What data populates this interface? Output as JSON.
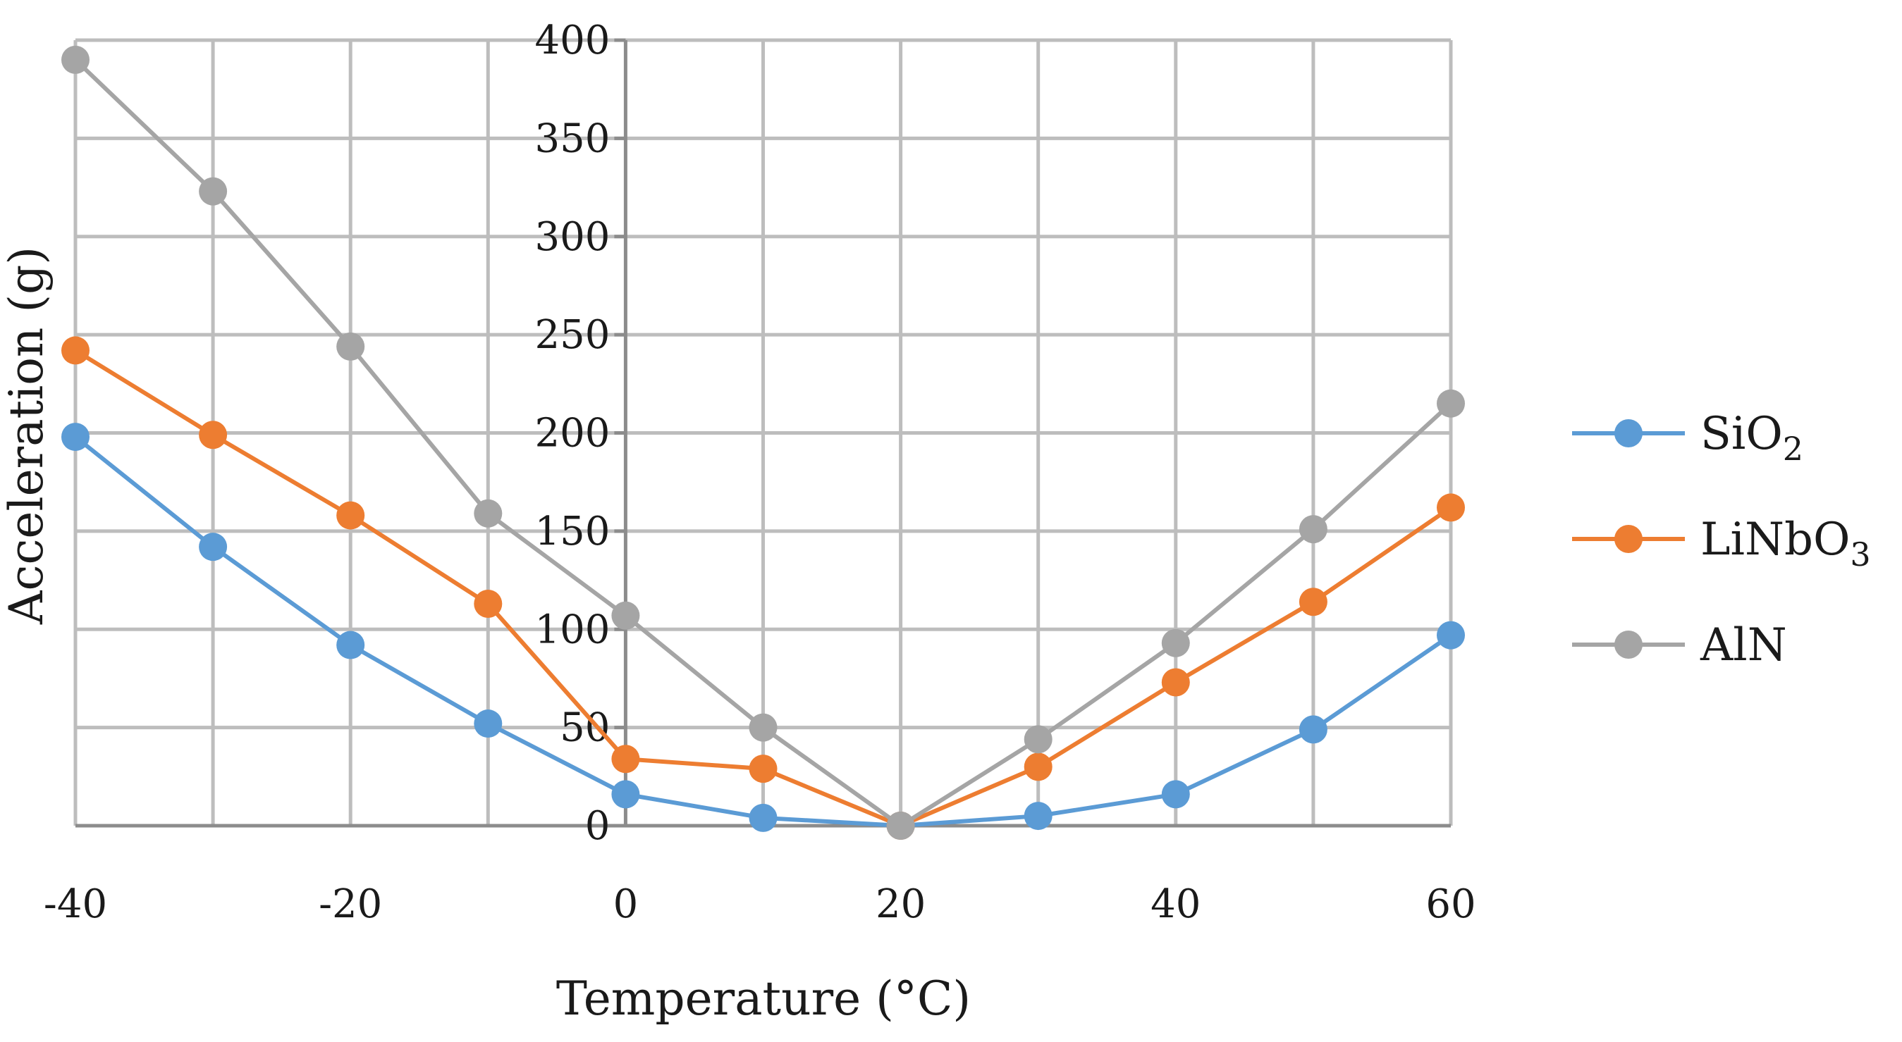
{
  "chart_data": {
    "type": "line",
    "title": "",
    "xlabel": "Temperature (°C)",
    "ylabel": "Acceleration (g)",
    "xlim": [
      -40,
      60
    ],
    "ylim": [
      0,
      400
    ],
    "x_ticks": [
      -40,
      -20,
      0,
      20,
      40,
      60
    ],
    "y_ticks": [
      0,
      50,
      100,
      150,
      200,
      250,
      300,
      350,
      400
    ],
    "x_grid": [
      -40,
      -30,
      -20,
      -10,
      0,
      10,
      20,
      30,
      40,
      50,
      60
    ],
    "grid": true,
    "legend_position": "right",
    "x": [
      -40,
      -30,
      -20,
      -10,
      0,
      10,
      20,
      30,
      40,
      50,
      60
    ],
    "series": [
      {
        "name": "SiO",
        "subscript": "2",
        "color": "#5b9bd5",
        "values": [
          198,
          142,
          92,
          52,
          16,
          4,
          0,
          5,
          16,
          49,
          97
        ]
      },
      {
        "name": "LiNbO",
        "subscript": "3",
        "color": "#ed7d31",
        "values": [
          242,
          199,
          158,
          113,
          34,
          29,
          0,
          30,
          73,
          114,
          162
        ]
      },
      {
        "name": "AlN",
        "subscript": "",
        "color": "#a5a5a5",
        "values": [
          390,
          323,
          244,
          159,
          107,
          50,
          0,
          44,
          93,
          151,
          215
        ]
      }
    ]
  }
}
